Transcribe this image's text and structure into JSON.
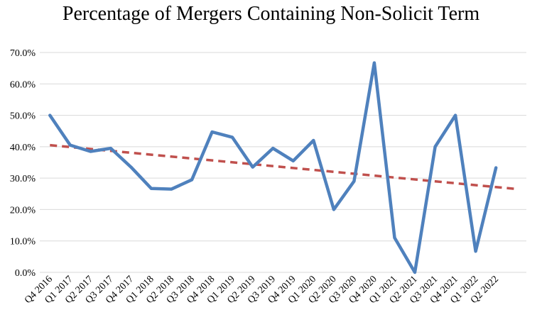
{
  "chart_data": {
    "type": "line",
    "title": "Percentage of Mergers Containing Non-Solicit Term",
    "xlabel": "",
    "ylabel": "",
    "ylim": [
      0,
      0.7
    ],
    "yticks": [
      0,
      0.1,
      0.2,
      0.3,
      0.4,
      0.5,
      0.6,
      0.7
    ],
    "ytick_labels": [
      "0.0%",
      "10.0%",
      "20.0%",
      "30.0%",
      "40.0%",
      "50.0%",
      "60.0%",
      "70.0%"
    ],
    "grid": true,
    "legend": "none",
    "categories": [
      "Q4 2016",
      "Q1 2017",
      "Q2 2017",
      "Q3 2017",
      "Q4 2017",
      "Q1 2018",
      "Q2 2018",
      "Q3 2018",
      "Q4 2018",
      "Q1 2019",
      "Q2 2019",
      "Q3 2019",
      "Q4 2019",
      "Q1 2020",
      "Q2 2020",
      "Q3 2020",
      "Q4 2020",
      "Q1 2021",
      "Q2 2021",
      "Q3 2021",
      "Q4 2021",
      "Q1 2022",
      "Q2 2022"
    ],
    "series": [
      {
        "color": "#4F81BD",
        "values": [
          0.5,
          0.405,
          0.385,
          0.395,
          0.335,
          0.267,
          0.265,
          0.295,
          0.447,
          0.43,
          0.335,
          0.395,
          0.355,
          0.42,
          0.2,
          0.29,
          0.667,
          0.11,
          0.0,
          0.4,
          0.5,
          0.067,
          0.333
        ]
      }
    ],
    "trendline": {
      "type": "linear",
      "color": "#C0504D",
      "style": "dashed",
      "start": 0.405,
      "end": 0.265
    }
  }
}
